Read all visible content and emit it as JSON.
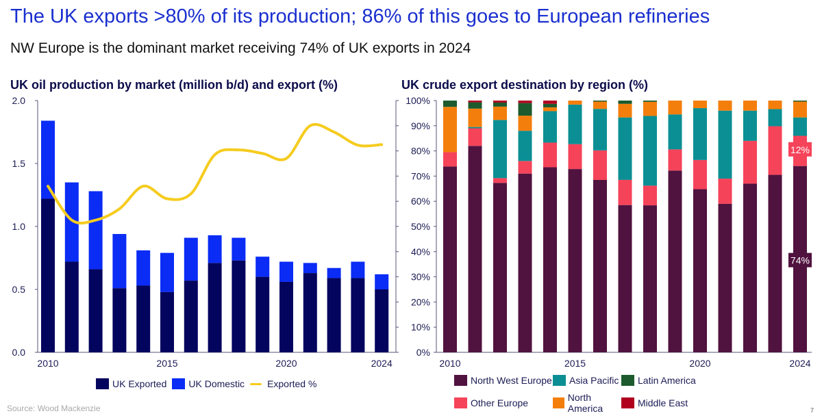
{
  "slide": {
    "title": "The UK exports >80% of its production; 86% of this goes to European refineries",
    "subtitle": "NW Europe is the dominant market receiving 74% of UK exports in 2024",
    "source": "Source: Wood Mackenzie",
    "page_number": "7"
  },
  "chart_data": [
    {
      "type": "bar",
      "stacked": true,
      "title": "UK oil production by market (million b/d) and export (%)",
      "categories": [
        "2010",
        "2011",
        "2012",
        "2013",
        "2014",
        "2015",
        "2016",
        "2017",
        "2018",
        "2019",
        "2020",
        "2021",
        "2022",
        "2023",
        "2024"
      ],
      "x_tick_labels": [
        "2010",
        "2015",
        "2020",
        "2024"
      ],
      "ylim": [
        0,
        2.0
      ],
      "y_ticks": [
        "0.0",
        "0.5",
        "1.0",
        "1.5",
        "2.0"
      ],
      "y2lim": [
        0,
        100
      ],
      "series": [
        {
          "name": "UK Exported",
          "type": "bar",
          "color": "#03045e",
          "values": [
            1.22,
            0.72,
            0.66,
            0.51,
            0.53,
            0.48,
            0.57,
            0.71,
            0.73,
            0.6,
            0.56,
            0.63,
            0.59,
            0.59,
            0.5
          ]
        },
        {
          "name": "UK Domestic",
          "type": "bar",
          "color": "#0a2cf5",
          "values": [
            0.62,
            0.63,
            0.62,
            0.43,
            0.28,
            0.31,
            0.34,
            0.22,
            0.18,
            0.16,
            0.16,
            0.08,
            0.08,
            0.13,
            0.12
          ]
        },
        {
          "name": "Exported %",
          "type": "line",
          "axis": "right",
          "color": "#f5cc1f",
          "values": [
            66,
            52.5,
            52.5,
            57,
            66,
            61,
            63,
            78.5,
            80.4,
            79,
            77,
            90,
            87.5,
            82.3,
            82.5
          ]
        }
      ],
      "legend": [
        "UK Exported",
        "UK Domestic",
        "Exported %"
      ],
      "legend_position": "bottom",
      "grid": false
    },
    {
      "type": "bar",
      "stacked": true,
      "title": "UK crude export destination by region (%)",
      "categories": [
        "2010",
        "2011",
        "2012",
        "2013",
        "2014",
        "2015",
        "2016",
        "2017",
        "2018",
        "2019",
        "2020",
        "2021",
        "2022",
        "2023",
        "2024"
      ],
      "x_tick_labels": [
        "2010",
        "2015",
        "2020",
        "2024"
      ],
      "ylim": [
        0,
        100
      ],
      "y_ticks": [
        "0%",
        "10%",
        "20%",
        "30%",
        "40%",
        "50%",
        "60%",
        "70%",
        "80%",
        "90%",
        "100%"
      ],
      "series": [
        {
          "name": "North West Europe",
          "color": "#50123e",
          "values": [
            73.8,
            82,
            67.3,
            71,
            73.5,
            72.8,
            68.5,
            58.5,
            58.4,
            72.2,
            64.8,
            59,
            67,
            70.5,
            74
          ]
        },
        {
          "name": "Other Europe",
          "color": "#f5435a",
          "values": [
            5.7,
            7,
            1.9,
            5,
            9.8,
            9.9,
            11.7,
            10,
            7.8,
            8.4,
            11.6,
            10,
            17,
            19.3,
            12
          ]
        },
        {
          "name": "Asia Pacific",
          "color": "#0b8f94",
          "values": [
            0,
            0.5,
            23.1,
            12,
            12.5,
            15.7,
            16.5,
            24.8,
            27.7,
            13.9,
            20.6,
            27,
            12,
            6.8,
            7.3
          ]
        },
        {
          "name": "North America",
          "color": "#f47e0c",
          "values": [
            18,
            7.3,
            5.3,
            6,
            1.5,
            1.6,
            2.9,
            5.4,
            5.6,
            5.5,
            3,
            4,
            4,
            3.4,
            6.3
          ]
        },
        {
          "name": "Latin America",
          "color": "#1d5a2e",
          "values": [
            2.5,
            2.5,
            1.6,
            5,
            1.4,
            0,
            0.4,
            1.3,
            0.5,
            0,
            0,
            0,
            0,
            0,
            0.4
          ]
        },
        {
          "name": "Middle East",
          "color": "#b0001e",
          "values": [
            0,
            0.7,
            0.8,
            1,
            1.3,
            0,
            0,
            0,
            0,
            0,
            0,
            0,
            0,
            0,
            0
          ]
        }
      ],
      "data_labels": [
        {
          "category": "2024",
          "series": "North West Europe",
          "text": "74%"
        },
        {
          "category": "2024",
          "series": "Other Europe",
          "text": "12%"
        }
      ],
      "legend": [
        "North West Europe",
        "Asia Pacific",
        "Latin America",
        "Other Europe",
        "North America",
        "Middle East"
      ],
      "legend_position": "bottom",
      "grid": false
    }
  ]
}
